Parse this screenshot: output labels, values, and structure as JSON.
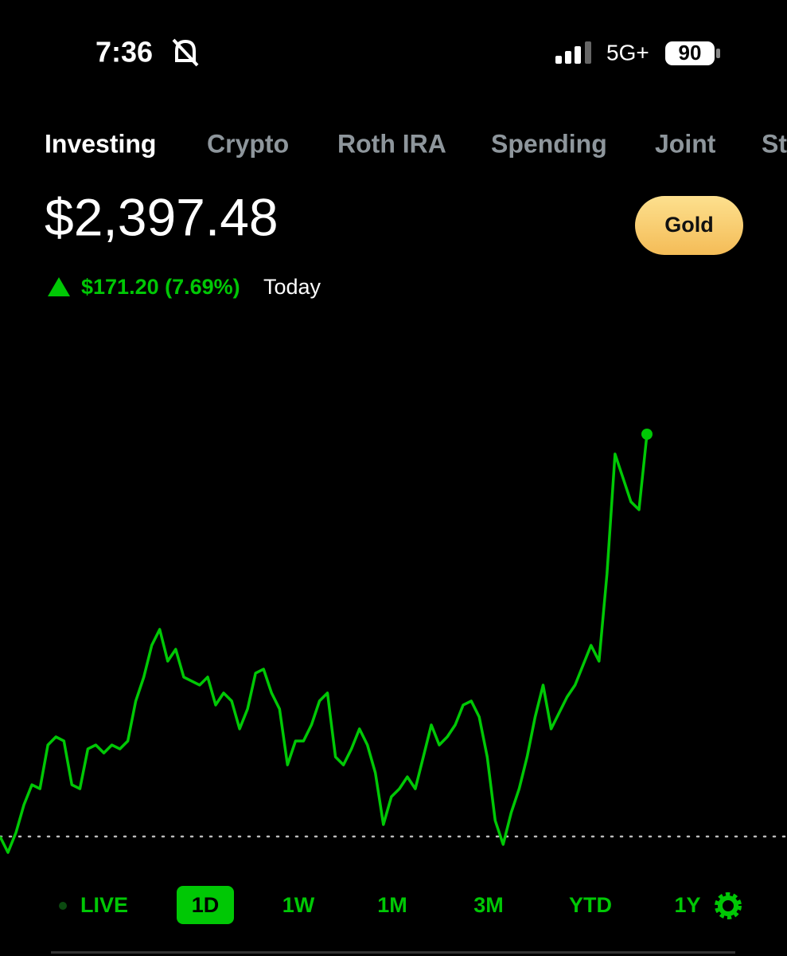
{
  "status_bar": {
    "time": "7:36",
    "network": "5G+",
    "battery": "90"
  },
  "tabs": [
    "Investing",
    "Crypto",
    "Roth IRA",
    "Spending",
    "Joint",
    "St"
  ],
  "portfolio": {
    "value": "$2,397.48",
    "change": "$171.20 (7.69%)",
    "period": "Today",
    "badge": "Gold"
  },
  "chart_data": {
    "type": "line",
    "color": "#00c805",
    "values": [
      2225.6,
      2218.8,
      2227.3,
      2239.2,
      2247.7,
      2246.0,
      2264.7,
      2268.2,
      2266.4,
      2247.7,
      2246.0,
      2263.0,
      2264.7,
      2261.3,
      2264.7,
      2263.0,
      2266.4,
      2283.5,
      2293.7,
      2307.3,
      2314.1,
      2300.5,
      2305.6,
      2293.7,
      2292.0,
      2290.3,
      2293.7,
      2281.8,
      2286.9,
      2283.5,
      2271.6,
      2280.1,
      2295.4,
      2297.1,
      2286.9,
      2280.1,
      2256.2,
      2266.4,
      2266.4,
      2273.3,
      2283.5,
      2286.9,
      2259.6,
      2256.2,
      2263.0,
      2271.6,
      2264.7,
      2252.8,
      2230.7,
      2242.6,
      2246.0,
      2251.1,
      2246.0,
      2259.6,
      2273.3,
      2264.7,
      2268.2,
      2273.3,
      2281.8,
      2283.5,
      2276.7,
      2259.6,
      2232.4,
      2222.2,
      2235.8,
      2246.0,
      2259.6,
      2276.7,
      2290.3,
      2271.6,
      2278.4,
      2285.2,
      2290.3,
      2298.8,
      2307.3,
      2300.5,
      2337.9,
      2389.0,
      2378.8,
      2368.6,
      2365.2,
      2397.48
    ]
  },
  "ranges": [
    "LIVE",
    "1D",
    "1W",
    "1M",
    "3M",
    "YTD",
    "1Y"
  ],
  "selected_range": 1
}
